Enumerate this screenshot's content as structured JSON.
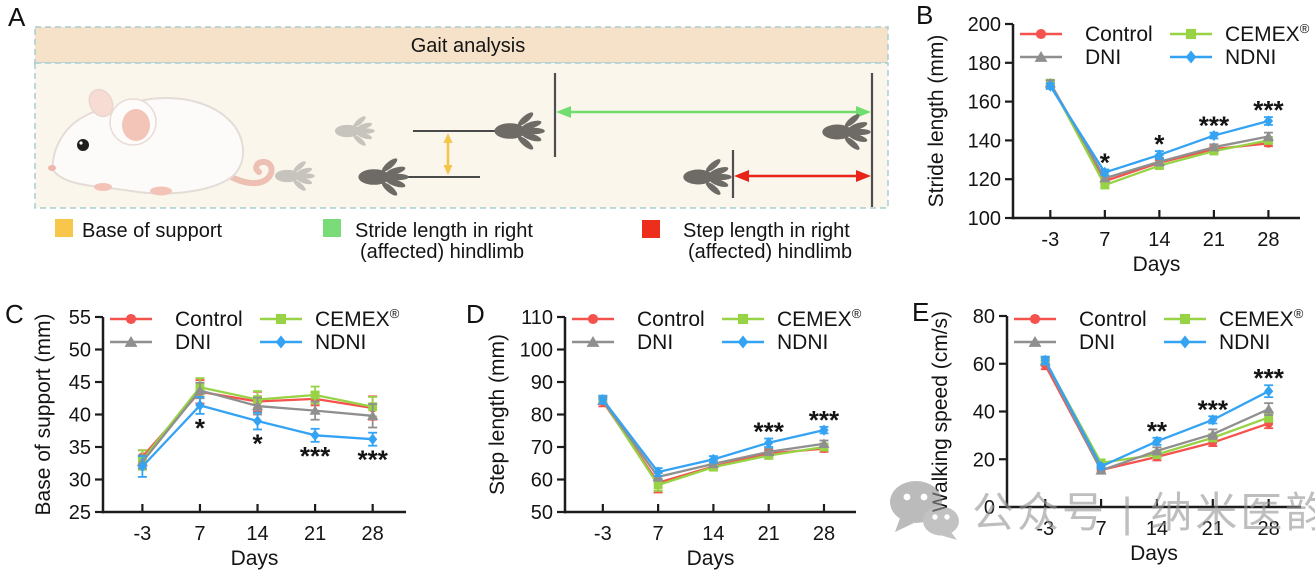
{
  "panels": {
    "A": {
      "label": "A",
      "title": "Gait analysis",
      "legend": [
        {
          "swatch_color": "#f8c64b",
          "line1": "Base of support",
          "line2": ""
        },
        {
          "swatch_color": "#79dc79",
          "line1": "Stride length in right",
          "line2": "(affected) hindlimb"
        },
        {
          "swatch_color": "#ee2e1c",
          "line1": "Step length in right",
          "line2": "(affected) hindlimb"
        }
      ],
      "arrow_colors": {
        "base_of_support": "#f6c44a",
        "stride_length": "#6fde6f",
        "step_length": "#e8241a"
      }
    }
  },
  "watermark": {
    "text": "公众号 | 纳米医韵"
  },
  "chart_data": [
    {
      "panel_label": "B",
      "type": "line",
      "ylabel": "Stride length (mm)",
      "xlabel": "Days",
      "ylim": [
        100,
        200
      ],
      "ytick_step": 20,
      "grid": false,
      "legend_position": "top",
      "categories": [
        "-3",
        "7",
        "14",
        "21",
        "28"
      ],
      "series": [
        {
          "name": "Control",
          "color": "#f5524e",
          "marker": "circle",
          "values": [
            169,
            119,
            128.5,
            135.5,
            138.5
          ],
          "errors": [
            2,
            1.5,
            1.5,
            1.5,
            1.5
          ]
        },
        {
          "name": "CEMEX®",
          "color": "#97d345",
          "marker": "square",
          "values": [
            169.5,
            117,
            127,
            134.5,
            140
          ],
          "errors": [
            1.5,
            1.5,
            1.5,
            1.5,
            1.5
          ]
        },
        {
          "name": "DNI",
          "color": "#8f8f8f",
          "marker": "triangle",
          "values": [
            169.5,
            120.5,
            129,
            136.5,
            142
          ],
          "errors": [
            1.5,
            1.5,
            2,
            1.5,
            2
          ]
        },
        {
          "name": "NDNI",
          "color": "#35a3f4",
          "marker": "diamond",
          "values": [
            168,
            123.5,
            132.5,
            142.5,
            150
          ],
          "errors": [
            1.5,
            1.5,
            2,
            1.5,
            2
          ]
        }
      ],
      "sig_position": "above",
      "significance": [
        {
          "day": "7",
          "label": "*"
        },
        {
          "day": "14",
          "label": "*"
        },
        {
          "day": "21",
          "label": "***"
        },
        {
          "day": "28",
          "label": "***"
        }
      ]
    },
    {
      "panel_label": "C",
      "type": "line",
      "ylabel": "Base of support (mm)",
      "xlabel": "Days",
      "ylim": [
        25,
        55
      ],
      "ytick_step": 5,
      "grid": false,
      "legend_position": "top",
      "categories": [
        "-3",
        "7",
        "14",
        "21",
        "28"
      ],
      "series": [
        {
          "name": "Control",
          "color": "#f5524e",
          "marker": "circle",
          "values": [
            33.5,
            43.5,
            42,
            42.4,
            41
          ],
          "errors": [
            1,
            1.8,
            1.5,
            1,
            1.8
          ]
        },
        {
          "name": "CEMEX®",
          "color": "#97d345",
          "marker": "square",
          "values": [
            33,
            44.2,
            42.3,
            43,
            41.2
          ],
          "errors": [
            1.5,
            1.4,
            1.3,
            1.3,
            1.5
          ]
        },
        {
          "name": "DNI",
          "color": "#8f8f8f",
          "marker": "triangle",
          "values": [
            32.7,
            43.7,
            41.3,
            40.6,
            39.8
          ],
          "errors": [
            1,
            1.2,
            1.3,
            1.4,
            1.8
          ]
        },
        {
          "name": "NDNI",
          "color": "#35a3f4",
          "marker": "diamond",
          "values": [
            32,
            41.4,
            39,
            36.8,
            36.2
          ],
          "errors": [
            1.6,
            1.3,
            1.3,
            1,
            1
          ]
        }
      ],
      "sig_position": "below",
      "significance": [
        {
          "day": "7",
          "label": "*"
        },
        {
          "day": "14",
          "label": "*"
        },
        {
          "day": "21",
          "label": "***"
        },
        {
          "day": "28",
          "label": "***"
        }
      ]
    },
    {
      "panel_label": "D",
      "type": "line",
      "ylabel": "Step length (mm)",
      "xlabel": "Days",
      "ylim": [
        50,
        110
      ],
      "ytick_step": 10,
      "grid": false,
      "legend_position": "top",
      "categories": [
        "-3",
        "7",
        "14",
        "21",
        "28"
      ],
      "series": [
        {
          "name": "Control",
          "color": "#f5524e",
          "marker": "circle",
          "values": [
            84,
            59,
            64,
            68,
            69.5
          ],
          "errors": [
            1.5,
            3,
            1,
            1,
            1
          ]
        },
        {
          "name": "CEMEX®",
          "color": "#97d345",
          "marker": "square",
          "values": [
            84.3,
            58.3,
            63.8,
            67.4,
            70
          ],
          "errors": [
            1,
            1.8,
            1,
            1,
            1
          ]
        },
        {
          "name": "DNI",
          "color": "#8f8f8f",
          "marker": "triangle",
          "values": [
            84.2,
            60.8,
            64.8,
            68.5,
            71
          ],
          "errors": [
            1,
            1.2,
            1,
            1,
            1
          ]
        },
        {
          "name": "NDNI",
          "color": "#35a3f4",
          "marker": "diamond",
          "values": [
            84.6,
            62.3,
            66.2,
            71.3,
            75.2
          ],
          "errors": [
            1.2,
            1.2,
            1,
            1.3,
            1
          ]
        }
      ],
      "sig_position": "above",
      "significance": [
        {
          "day": "21",
          "label": "***"
        },
        {
          "day": "28",
          "label": "***"
        }
      ]
    },
    {
      "panel_label": "E",
      "type": "line",
      "ylabel": "Walking speed (cm/s)",
      "xlabel": "Days",
      "ylim": [
        0,
        80
      ],
      "ytick_step": 20,
      "grid": false,
      "legend_position": "top",
      "categories": [
        "-3",
        "7",
        "14",
        "21",
        "28"
      ],
      "series": [
        {
          "name": "Control",
          "color": "#f5524e",
          "marker": "circle",
          "values": [
            59.5,
            15.5,
            21,
            27,
            35
          ],
          "errors": [
            1.8,
            1,
            1.5,
            1.5,
            2
          ]
        },
        {
          "name": "CEMEX®",
          "color": "#97d345",
          "marker": "square",
          "values": [
            61.2,
            18.5,
            22,
            29,
            37.5
          ],
          "errors": [
            1.5,
            1.2,
            1.5,
            1.5,
            1.8
          ]
        },
        {
          "name": "DNI",
          "color": "#8f8f8f",
          "marker": "triangle",
          "values": [
            61,
            15.3,
            23.5,
            30.5,
            41
          ],
          "errors": [
            1.5,
            1.2,
            1.5,
            2,
            2.5
          ]
        },
        {
          "name": "NDNI",
          "color": "#35a3f4",
          "marker": "diamond",
          "values": [
            61.5,
            17,
            27.5,
            36.5,
            48.5
          ],
          "errors": [
            1.5,
            1,
            1.5,
            1.5,
            2.5
          ]
        }
      ],
      "sig_position": "above",
      "significance": [
        {
          "day": "14",
          "label": "**"
        },
        {
          "day": "21",
          "label": "***"
        },
        {
          "day": "28",
          "label": "***"
        }
      ]
    }
  ]
}
